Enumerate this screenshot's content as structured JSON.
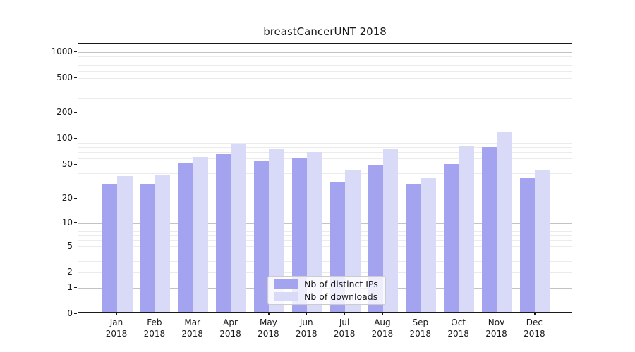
{
  "chart_data": {
    "type": "bar",
    "title": "breastCancerUNT 2018",
    "categories": [
      "Jan 2018",
      "Feb 2018",
      "Mar 2018",
      "Apr 2018",
      "May 2018",
      "Jun 2018",
      "Jul 2018",
      "Aug 2018",
      "Sep 2018",
      "Oct 2018",
      "Nov 2018",
      "Dec 2018"
    ],
    "months": [
      "Jan",
      "Feb",
      "Mar",
      "Apr",
      "May",
      "Jun",
      "Jul",
      "Aug",
      "Sep",
      "Oct",
      "Nov",
      "Dec"
    ],
    "year_label": "2018",
    "series": [
      {
        "name": "Nb of distinct IPs",
        "color": "#a3a3ef",
        "values": [
          30,
          29,
          52,
          66,
          56,
          60,
          31,
          50,
          29,
          51,
          80,
          35
        ]
      },
      {
        "name": "Nb of downloads",
        "color": "#d9d9f8",
        "values": [
          37,
          38,
          61,
          88,
          75,
          70,
          44,
          77,
          35,
          83,
          120,
          44
        ]
      }
    ],
    "yscale": "log10(value+1)",
    "ylim": [
      0,
      1250
    ],
    "y_tick_values": [
      0,
      1,
      2,
      5,
      10,
      20,
      50,
      100,
      200,
      500,
      1000
    ],
    "y_tick_labels": [
      "0",
      "1",
      "2",
      "5",
      "10",
      "20",
      "50",
      "100",
      "200",
      "500",
      "1000"
    ],
    "y_major_grid": [
      1,
      10,
      100,
      1000
    ],
    "y_minor_grid": [
      2,
      3,
      4,
      5,
      6,
      7,
      8,
      9,
      20,
      30,
      40,
      50,
      60,
      70,
      80,
      90,
      200,
      300,
      400,
      500,
      600,
      700,
      800,
      900
    ],
    "grid": "on",
    "legend_position": "lower center",
    "colors": {
      "distinct_ips": "#a3a3ef",
      "downloads": "#d9d9f8",
      "major_grid": "#c3c3c3",
      "minor_grid": "#ebebeb",
      "axis": "#1a1a1a",
      "background": "#ffffff"
    }
  }
}
